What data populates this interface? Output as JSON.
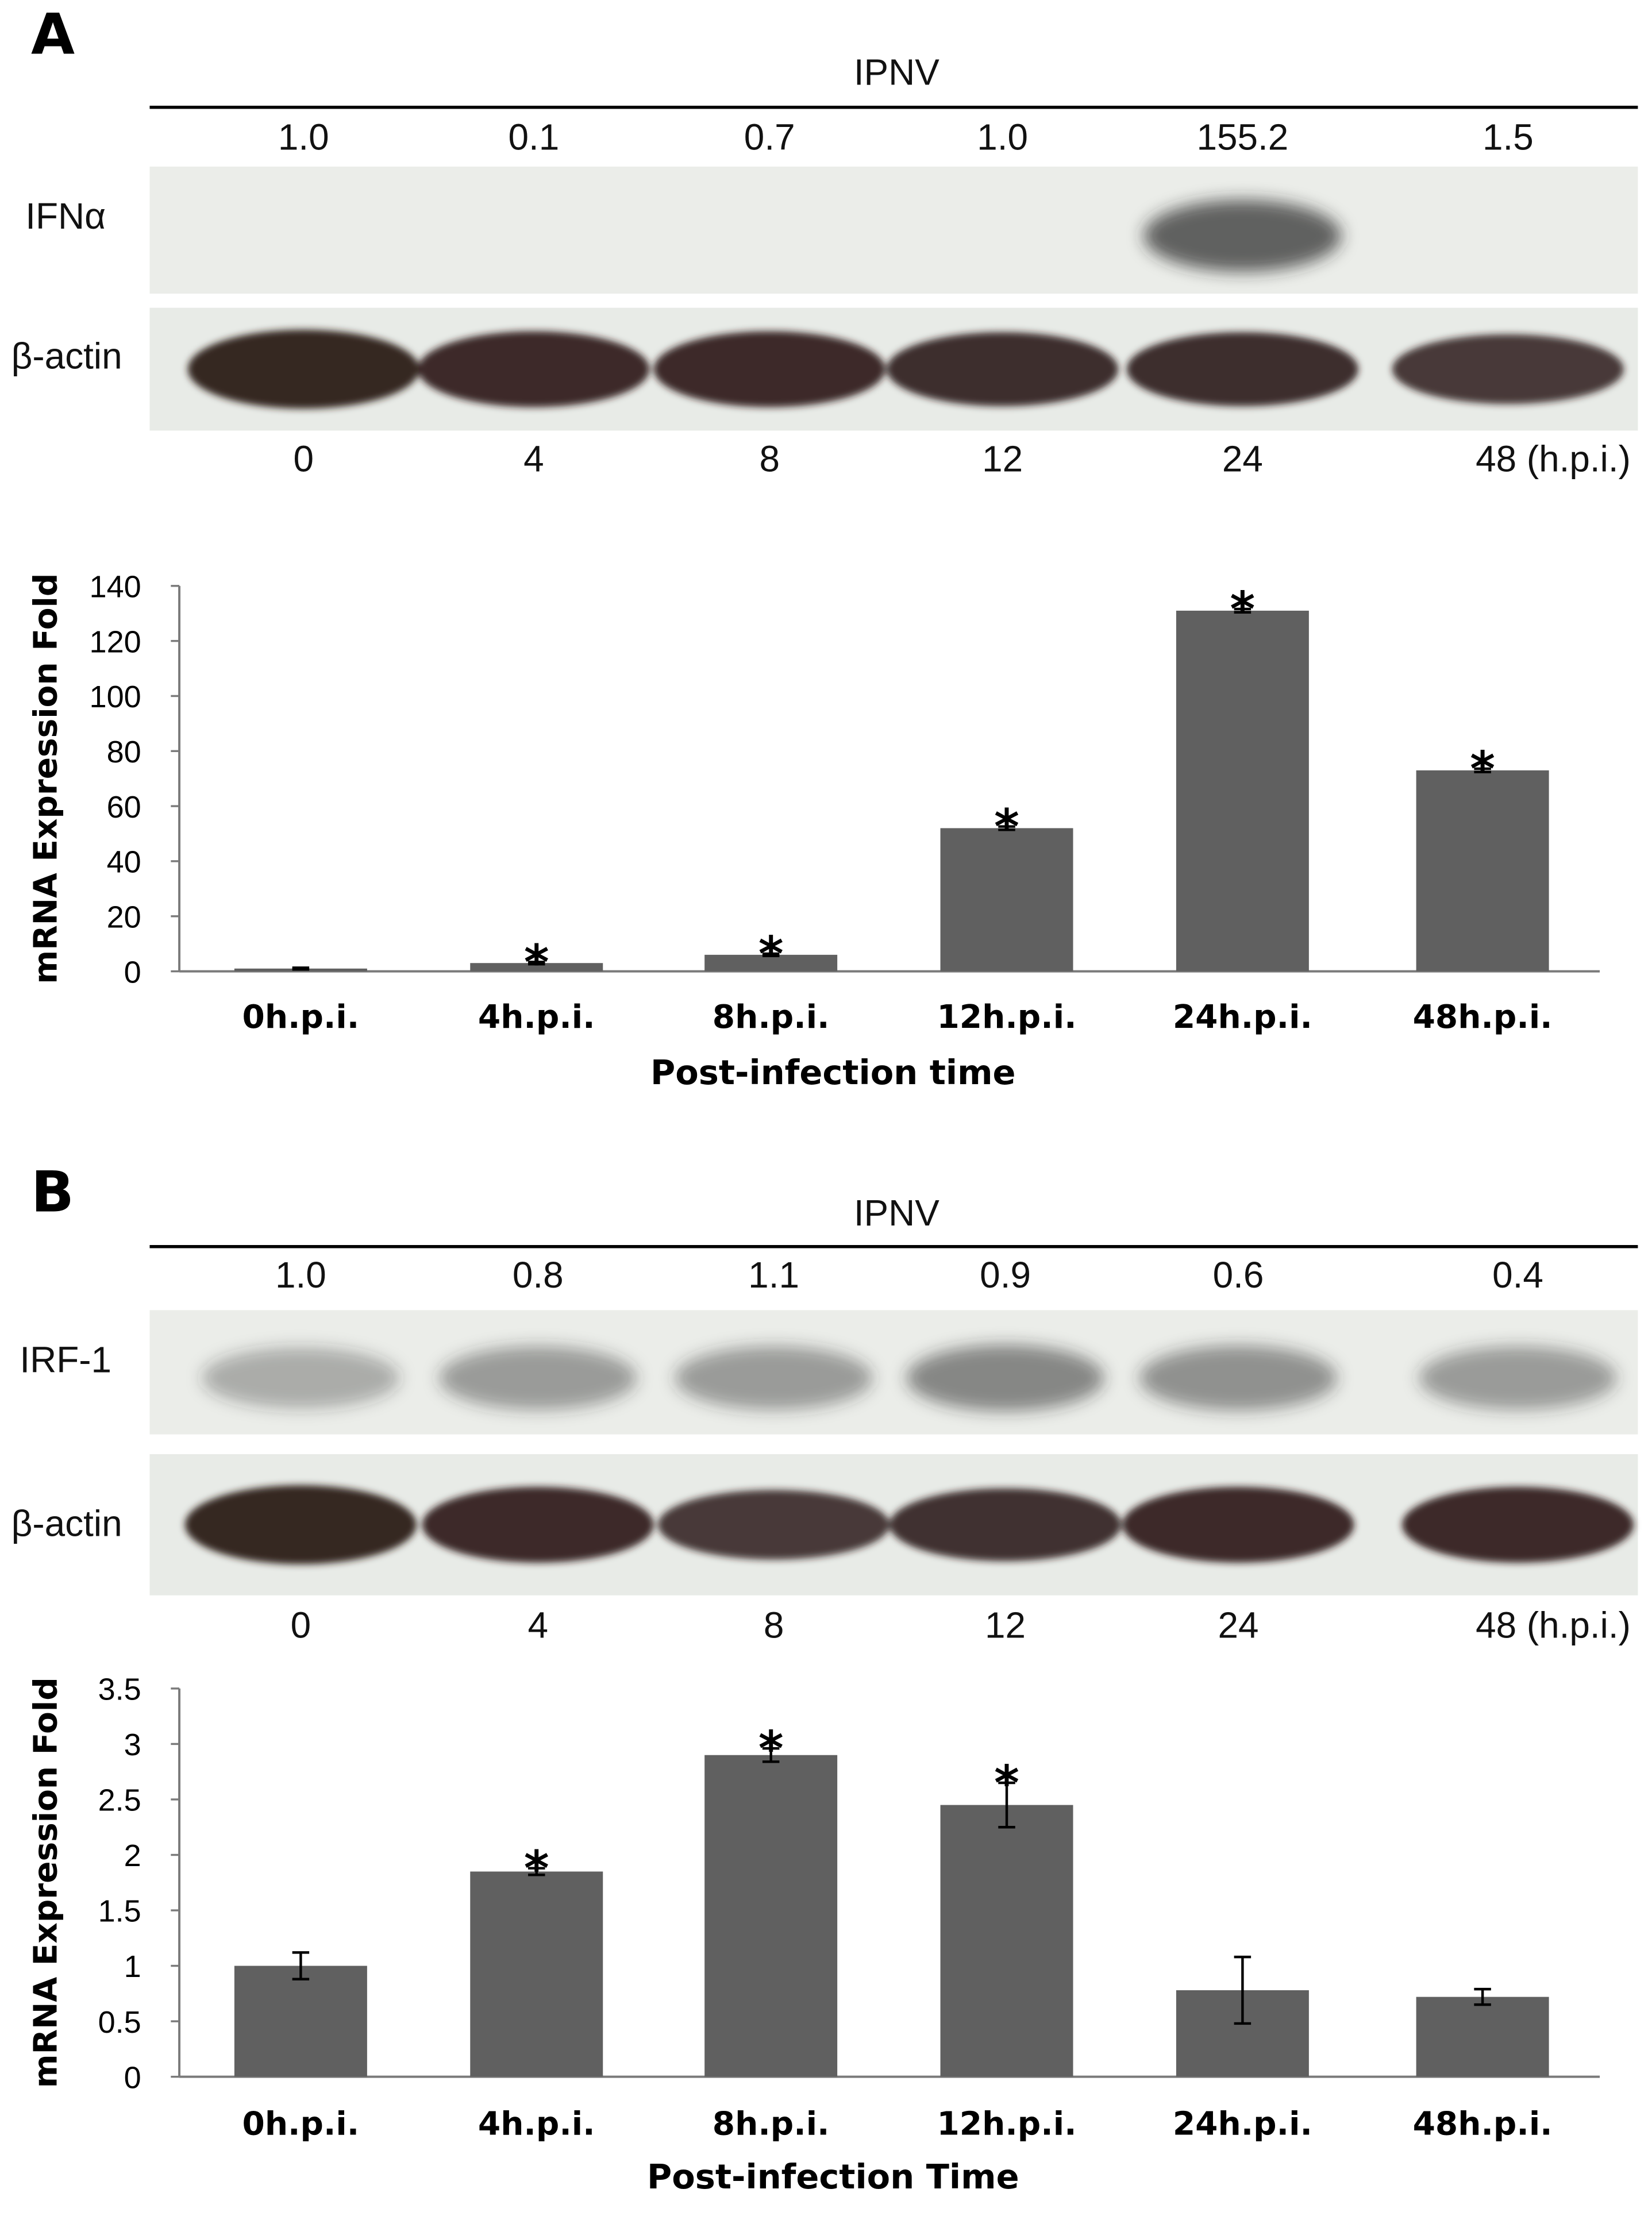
{
  "panels": [
    {
      "letter": "A",
      "blot": {
        "condition": "IPNV",
        "quant": [
          "1.0",
          "0.1",
          "0.7",
          "1.0",
          "155.2",
          "1.5"
        ],
        "target_label": "IFNα",
        "loading_label": "β-actin",
        "timepoints": [
          "0",
          "4",
          "8",
          "12",
          "24",
          "48 (h.p.i.)"
        ],
        "target_band_intensity": [
          0.0,
          0.0,
          0.0,
          0.0,
          0.75,
          0.0
        ],
        "loading_band_intensity": [
          1.0,
          0.95,
          0.95,
          0.92,
          0.92,
          0.85
        ]
      }
    },
    {
      "letter": "B",
      "blot": {
        "condition": "IPNV",
        "quant": [
          "1.0",
          "0.8",
          "1.1",
          "0.9",
          "0.6",
          "0.4"
        ],
        "target_label": "IRF-1",
        "loading_label": "β-actin",
        "timepoints": [
          "0",
          "4",
          "8",
          "12",
          "24",
          "48 (h.p.i.)"
        ],
        "target_band_intensity": [
          0.35,
          0.45,
          0.45,
          0.55,
          0.5,
          0.45
        ],
        "loading_band_intensity": [
          1.0,
          0.95,
          0.85,
          0.9,
          0.95,
          0.95
        ]
      }
    }
  ],
  "chart_data": [
    {
      "type": "bar",
      "title": "",
      "xlabel": "Post-infection time",
      "ylabel": "mRNA Expression Fold",
      "categories": [
        "0h.p.i.",
        "4h.p.i.",
        "8h.p.i.",
        "12h.p.i.",
        "24h.p.i.",
        "48h.p.i."
      ],
      "values": [
        1,
        3,
        6,
        52,
        131,
        73
      ],
      "errors": [
        0.3,
        0.4,
        0.4,
        0.6,
        0.6,
        0.6
      ],
      "significance": [
        "",
        "*",
        "*",
        "*",
        "*",
        "*"
      ],
      "ylim": [
        0,
        140
      ],
      "yticks": [
        "0",
        "20",
        "40",
        "60",
        "80",
        "100",
        "120",
        "140"
      ],
      "bar_color": "#606060",
      "grid": false
    },
    {
      "type": "bar",
      "title": "",
      "xlabel": "Post-infection Time",
      "ylabel": "mRNA Expression Fold",
      "categories": [
        "0h.p.i.",
        "4h.p.i.",
        "8h.p.i.",
        "12h.p.i.",
        "24h.p.i.",
        "48h.p.i."
      ],
      "values": [
        1.0,
        1.85,
        2.9,
        2.45,
        0.78,
        0.72
      ],
      "errors": [
        0.12,
        0.03,
        0.06,
        0.2,
        0.3,
        0.07
      ],
      "significance": [
        "",
        "*",
        "*",
        "*",
        "",
        ""
      ],
      "ylim": [
        0,
        3.5
      ],
      "yticks": [
        "0",
        "0.5",
        "1",
        "1.5",
        "2",
        "2.5",
        "3",
        "3.5"
      ],
      "bar_color": "#606060",
      "grid": false
    }
  ]
}
